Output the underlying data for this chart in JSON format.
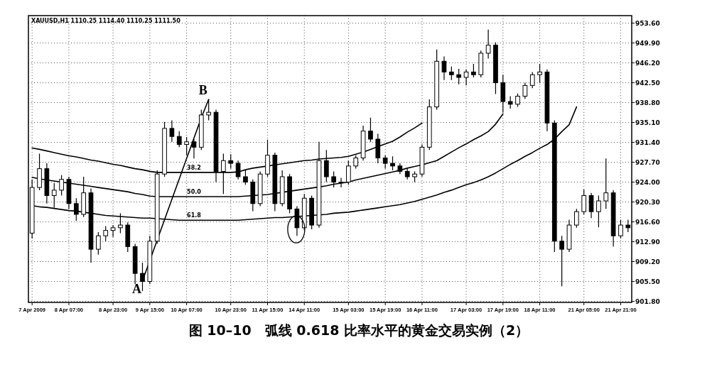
{
  "chart_data": {
    "type": "candlestick",
    "title": "图 10–10　弧线 0.618 比率水平的黄金交易实例（2）",
    "categories": [
      "7 Apr 2009",
      null,
      null,
      null,
      null,
      "8 Apr 07:00",
      null,
      null,
      null,
      null,
      null,
      "8 Apr 23:00",
      null,
      null,
      null,
      null,
      "9 Apr 15:00",
      null,
      null,
      null,
      null,
      "10 Apr 07:00",
      null,
      null,
      null,
      null,
      null,
      "10 Apr 23:00",
      null,
      null,
      null,
      null,
      "11 Apr 15:00",
      null,
      null,
      null,
      null,
      "14 Apr 11:00",
      null,
      null,
      null,
      null,
      null,
      "15 Apr 03:00",
      null,
      null,
      null,
      null,
      "15 Apr 19:00",
      null,
      null,
      null,
      null,
      "16 Apr 11:00",
      null,
      null,
      null,
      null,
      null,
      "17 Apr 03:00",
      null,
      null,
      null,
      null,
      "17 Apr 19:00",
      null,
      null,
      null,
      null,
      "18 Apr 11:00",
      null,
      null,
      null,
      null,
      null,
      "21 Apr 05:00",
      null,
      null,
      null,
      null,
      "21 Apr 21:00",
      null
    ],
    "ohlc": [
      [
        914.5,
        924.5,
        913.5,
        923.0
      ],
      [
        923.0,
        929.3,
        922.5,
        926.5
      ],
      [
        926.5,
        927.5,
        920.0,
        921.5
      ],
      [
        921.5,
        923.8,
        919.2,
        922.5
      ],
      [
        922.5,
        925.3,
        921.5,
        924.5
      ],
      [
        924.5,
        925.0,
        919.0,
        920.0
      ],
      [
        920.0,
        921.0,
        916.8,
        918.0
      ],
      [
        918.0,
        925.0,
        917.5,
        922.0
      ],
      [
        922.0,
        922.8,
        909.0,
        911.5
      ],
      [
        911.5,
        914.7,
        910.5,
        914.0
      ],
      [
        914.0,
        915.8,
        913.0,
        915.0
      ],
      [
        915.0,
        916.0,
        913.8,
        915.5
      ],
      [
        915.5,
        918.2,
        914.5,
        916.0
      ],
      [
        916.0,
        916.5,
        911.0,
        912.0
      ],
      [
        912.0,
        912.5,
        905.0,
        907.0
      ],
      [
        907.0,
        909.0,
        903.7,
        905.5
      ],
      [
        905.5,
        914.0,
        905.0,
        913.0
      ],
      [
        913.0,
        926.2,
        912.5,
        925.5
      ],
      [
        925.5,
        935.2,
        925.0,
        934.0
      ],
      [
        934.0,
        935.5,
        931.5,
        932.5
      ],
      [
        932.5,
        933.5,
        930.5,
        931.0
      ],
      [
        931.0,
        932.4,
        929.0,
        931.5
      ],
      [
        931.5,
        932.0,
        928.4,
        930.5
      ],
      [
        930.5,
        937.5,
        930.0,
        936.5
      ],
      [
        936.5,
        939.4,
        935.5,
        937.0
      ],
      [
        937.0,
        937.5,
        924.0,
        926.0
      ],
      [
        926.0,
        929.3,
        921.8,
        928.0
      ],
      [
        928.0,
        929.2,
        926.5,
        927.5
      ],
      [
        927.5,
        928.0,
        924.5,
        925.0
      ],
      [
        925.0,
        926.2,
        923.5,
        924.0
      ],
      [
        924.0,
        924.5,
        918.6,
        920.0
      ],
      [
        920.0,
        926.0,
        919.5,
        925.5
      ],
      [
        925.5,
        931.9,
        925.0,
        929.0
      ],
      [
        929.0,
        929.5,
        918.6,
        920.0
      ],
      [
        920.0,
        926.2,
        919.5,
        925.0
      ],
      [
        925.0,
        925.5,
        918.2,
        919.0
      ],
      [
        919.0,
        919.5,
        914.0,
        915.5
      ],
      [
        915.5,
        921.8,
        915.0,
        921.0
      ],
      [
        921.0,
        921.5,
        915.2,
        916.0
      ],
      [
        916.0,
        931.5,
        915.5,
        928.0
      ],
      [
        928.0,
        930.0,
        924.0,
        925.0
      ],
      [
        925.0,
        926.0,
        923.0,
        924.0
      ],
      [
        924.0,
        924.8,
        923.0,
        924.0
      ],
      [
        924.0,
        928.0,
        923.5,
        927.0
      ],
      [
        927.0,
        929.0,
        926.5,
        928.5
      ],
      [
        928.5,
        934.5,
        928.0,
        933.5
      ],
      [
        933.5,
        936.0,
        931.5,
        932.0
      ],
      [
        932.0,
        933.0,
        927.5,
        928.5
      ],
      [
        928.5,
        929.0,
        926.5,
        927.5
      ],
      [
        927.5,
        928.8,
        926.2,
        927.0
      ],
      [
        927.0,
        927.5,
        925.5,
        926.0
      ],
      [
        926.0,
        926.5,
        924.5,
        925.0
      ],
      [
        925.0,
        926.0,
        924.0,
        925.5
      ],
      [
        925.5,
        931.0,
        925.0,
        930.5
      ],
      [
        930.5,
        939.4,
        930.0,
        938.0
      ],
      [
        938.0,
        948.7,
        937.5,
        946.5
      ],
      [
        946.5,
        947.4,
        943.0,
        944.5
      ],
      [
        944.5,
        945.5,
        943.0,
        944.0
      ],
      [
        944.0,
        945.1,
        942.2,
        943.5
      ],
      [
        943.5,
        945.0,
        942.0,
        944.5
      ],
      [
        944.5,
        946.0,
        943.5,
        944.0
      ],
      [
        944.0,
        948.5,
        943.5,
        948.0
      ],
      [
        948.0,
        952.4,
        947.0,
        949.5
      ],
      [
        949.5,
        950.0,
        940.4,
        942.5
      ],
      [
        942.5,
        944.0,
        937.0,
        939.0
      ],
      [
        939.0,
        940.0,
        937.7,
        938.5
      ],
      [
        938.5,
        940.5,
        938.0,
        940.0
      ],
      [
        940.0,
        942.5,
        939.5,
        942.0
      ],
      [
        942.0,
        944.5,
        941.5,
        944.0
      ],
      [
        944.0,
        946.0,
        942.5,
        944.5
      ],
      [
        944.5,
        945.0,
        933.5,
        935.0
      ],
      [
        935.0,
        935.5,
        911.0,
        913.0
      ],
      [
        913.0,
        914.0,
        904.6,
        911.5
      ],
      [
        911.5,
        917.0,
        911.0,
        916.0
      ],
      [
        916.0,
        919.0,
        915.5,
        918.5
      ],
      [
        918.5,
        922.6,
        918.0,
        921.5
      ],
      [
        921.5,
        922.0,
        917.3,
        918.5
      ],
      [
        918.5,
        921.5,
        915.6,
        920.5
      ],
      [
        920.5,
        928.4,
        919.0,
        922.0
      ],
      [
        922.0,
        922.5,
        912.0,
        914.0
      ],
      [
        914.0,
        917.0,
        913.5,
        916.0
      ],
      [
        916.0,
        917.0,
        914.7,
        915.5
      ]
    ],
    "color": "#000000",
    "series": [
      {
        "type": "line",
        "name": "38.2",
        "color": "#000000",
        "values": [
          930.35,
          930.1,
          929.8,
          929.5,
          929.2,
          928.9,
          928.7,
          928.4,
          928.1,
          927.9,
          927.6,
          927.3,
          927.1,
          926.8,
          926.5,
          926.3,
          926.0,
          925.8,
          925.8,
          925.8,
          925.8,
          925.8,
          925.8,
          925.8,
          925.8,
          925.8,
          925.8,
          925.8,
          925.9,
          926.3,
          926.6,
          926.8,
          927.0,
          927.2,
          927.4,
          927.6,
          927.8,
          928.0,
          928.1,
          928.3,
          928.4,
          928.5,
          928.6,
          928.8,
          929.2,
          929.6,
          930.1,
          930.6,
          931.1,
          931.6,
          932.4,
          933.3,
          934.1,
          935.0,
          null,
          null,
          null,
          null,
          null,
          null,
          null,
          null,
          null,
          null,
          null,
          null,
          null,
          null,
          null,
          null,
          null,
          null,
          null,
          null,
          null,
          null,
          null,
          null,
          null,
          null,
          null,
          null
        ]
      },
      {
        "type": "line",
        "name": "50.0",
        "color": "#000000",
        "values": [
          924.9,
          924.6,
          924.4,
          924.2,
          924.0,
          923.8,
          923.6,
          923.4,
          923.2,
          923.0,
          922.8,
          922.6,
          922.4,
          922.2,
          921.9,
          921.7,
          921.4,
          921.3,
          921.3,
          921.3,
          921.3,
          921.3,
          921.3,
          921.3,
          921.3,
          921.3,
          921.3,
          921.3,
          921.3,
          921.4,
          921.5,
          921.6,
          921.7,
          921.9,
          922.1,
          922.3,
          922.5,
          922.7,
          922.9,
          923.1,
          923.3,
          923.6,
          923.8,
          924.0,
          924.4,
          924.7,
          925.0,
          925.3,
          925.6,
          925.9,
          926.2,
          926.6,
          926.9,
          927.2,
          927.6,
          928.0,
          928.8,
          929.6,
          930.4,
          931.1,
          931.9,
          932.6,
          933.4,
          934.8,
          936.7,
          null,
          null,
          null,
          null,
          null,
          null,
          null,
          null,
          null,
          null,
          null,
          null,
          null,
          null,
          null,
          null,
          null
        ]
      },
      {
        "type": "line",
        "name": "61.8",
        "color": "#000000",
        "values": [
          919.6,
          919.4,
          919.3,
          919.1,
          918.9,
          918.7,
          918.6,
          918.4,
          918.2,
          918.0,
          917.8,
          917.7,
          917.6,
          917.5,
          917.4,
          917.3,
          917.3,
          917.2,
          917.1,
          917.0,
          916.9,
          916.9,
          916.9,
          916.9,
          916.9,
          916.9,
          916.9,
          916.9,
          916.9,
          917.0,
          917.1,
          917.2,
          917.3,
          917.4,
          917.4,
          917.5,
          917.6,
          917.7,
          917.8,
          917.9,
          918.0,
          918.2,
          918.3,
          918.4,
          918.6,
          918.8,
          919.0,
          919.2,
          919.4,
          919.6,
          919.8,
          920.1,
          920.4,
          920.8,
          921.2,
          921.6,
          922.1,
          922.5,
          923.0,
          923.5,
          923.9,
          924.4,
          925.0,
          925.7,
          926.5,
          927.3,
          928.0,
          928.8,
          929.5,
          930.3,
          931.0,
          932.0,
          933.4,
          934.7,
          938.0,
          null,
          null,
          null,
          null,
          null,
          null,
          null
        ]
      },
      {
        "type": "line",
        "color": "#000000",
        "values": [
          null,
          null,
          null,
          null,
          null,
          null,
          null,
          null,
          null,
          null,
          null,
          null,
          null,
          null,
          null,
          905.6,
          909.4,
          913.2,
          917.0,
          920.8,
          924.6,
          928.4,
          932.2,
          936.0,
          939.4,
          null,
          null,
          null,
          null,
          null,
          null,
          null,
          null,
          null,
          null,
          null,
          null,
          null,
          null,
          null,
          null,
          null,
          null,
          null,
          null,
          null,
          null,
          null,
          null,
          null,
          null,
          null,
          null,
          null,
          null,
          null,
          null,
          null,
          null,
          null,
          null,
          null,
          null,
          null,
          null,
          null,
          null,
          null,
          null,
          null,
          null,
          null,
          null,
          null,
          null,
          null,
          null,
          null,
          null,
          null,
          null,
          null
        ]
      }
    ],
    "ylim": [
      901.6,
      955.0
    ],
    "yticks": [
      {
        "value": 953.6,
        "label": "953.60"
      },
      {
        "value": 949.9,
        "label": "949.90"
      },
      {
        "value": 946.2,
        "label": "946.20"
      },
      {
        "value": 942.5,
        "label": "942.50"
      },
      {
        "value": 938.8,
        "label": "938.80"
      },
      {
        "value": 935.1,
        "label": "935.10"
      },
      {
        "value": 931.4,
        "label": "931.40"
      },
      {
        "value": 927.7,
        "label": "927.70"
      },
      {
        "value": 924.0,
        "label": "924.00"
      },
      {
        "value": 920.3,
        "label": "920.30"
      },
      {
        "value": 916.6,
        "label": "916.60"
      },
      {
        "value": 912.9,
        "label": "912.90"
      },
      {
        "value": 909.2,
        "label": "909.20"
      },
      {
        "value": 905.5,
        "label": "905.50"
      },
      {
        "value": 901.8,
        "label": "901.80"
      }
    ],
    "grid": true,
    "annotations": [
      "XAUUSD,H1  1110.25 1114.40 1110.25 1111.50",
      "A",
      "B"
    ]
  }
}
